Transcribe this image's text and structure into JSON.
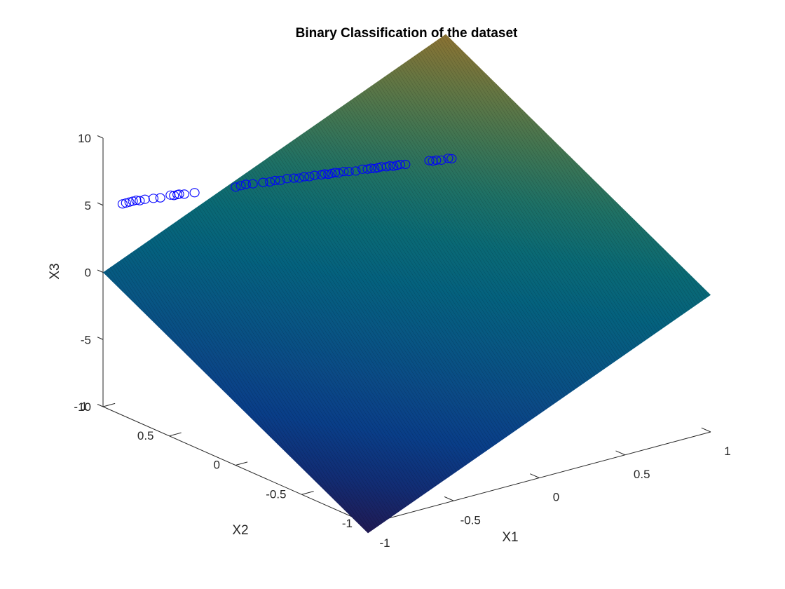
{
  "chart_data": {
    "type": "surface+scatter3d",
    "title": "Binary Classification of the dataset",
    "xlabel": "X1",
    "ylabel": "X2",
    "zlabel": "X3",
    "xlim": [
      -1,
      1
    ],
    "ylim": [
      -1,
      1
    ],
    "zlim": [
      -10,
      10
    ],
    "xticks": [
      "-1",
      "-0.5",
      "0",
      "0.5",
      "1"
    ],
    "yticks": [
      "-1",
      "-0.5",
      "0",
      "0.5",
      "1"
    ],
    "zticks": [
      "-10",
      "-5",
      "0",
      "5",
      "10"
    ],
    "grid": false,
    "colormap": "parula",
    "marker_color": "#0000ff",
    "surface": {
      "kind": "plane",
      "corners": [
        {
          "x1": -1,
          "x2": -1,
          "x3": -10.7
        },
        {
          "x1": 1,
          "x2": -1,
          "x3": 0.2
        },
        {
          "x1": 1,
          "x2": 1,
          "x3": 10.9
        },
        {
          "x1": -1,
          "x2": 1,
          "x3": 0.0
        }
      ]
    },
    "points": [
      {
        "x1": -0.94,
        "x2": 0.93,
        "x3": 5.2
      },
      {
        "x1": -0.92,
        "x2": 0.93,
        "x3": 5.2
      },
      {
        "x1": -0.9,
        "x2": 0.93,
        "x3": 5.2
      },
      {
        "x1": -0.88,
        "x2": 0.93,
        "x3": 5.2
      },
      {
        "x1": -0.86,
        "x2": 0.93,
        "x3": 5.2
      },
      {
        "x1": -0.84,
        "x2": 0.93,
        "x3": 5.1
      },
      {
        "x1": -0.81,
        "x2": 0.93,
        "x3": 5.1
      },
      {
        "x1": -0.76,
        "x2": 0.93,
        "x3": 5.0
      },
      {
        "x1": -0.72,
        "x2": 0.93,
        "x3": 4.9
      },
      {
        "x1": -0.66,
        "x2": 0.93,
        "x3": 4.9
      },
      {
        "x1": -0.64,
        "x2": 0.93,
        "x3": 4.8
      },
      {
        "x1": -0.62,
        "x2": 0.93,
        "x3": 4.8
      },
      {
        "x1": -0.61,
        "x2": 0.93,
        "x3": 4.8
      },
      {
        "x1": -0.58,
        "x2": 0.93,
        "x3": 4.7
      },
      {
        "x1": -0.52,
        "x2": 0.93,
        "x3": 4.6
      },
      {
        "x1": -0.28,
        "x2": 0.93,
        "x3": 4.2
      },
      {
        "x1": -0.25,
        "x2": 0.93,
        "x3": 4.2
      },
      {
        "x1": -0.22,
        "x2": 0.93,
        "x3": 4.2
      },
      {
        "x1": -0.18,
        "x2": 0.93,
        "x3": 4.1
      },
      {
        "x1": -0.12,
        "x2": 0.93,
        "x3": 4.0
      },
      {
        "x1": -0.08,
        "x2": 0.93,
        "x3": 3.9
      },
      {
        "x1": -0.05,
        "x2": 0.93,
        "x3": 3.9
      },
      {
        "x1": -0.02,
        "x2": 0.93,
        "x3": 3.8
      },
      {
        "x1": 0.02,
        "x2": 0.93,
        "x3": 3.8
      },
      {
        "x1": 0.06,
        "x2": 0.93,
        "x3": 3.7
      },
      {
        "x1": 0.09,
        "x2": 0.93,
        "x3": 3.6
      },
      {
        "x1": 0.12,
        "x2": 0.93,
        "x3": 3.6
      },
      {
        "x1": 0.15,
        "x2": 0.93,
        "x3": 3.5
      },
      {
        "x1": 0.18,
        "x2": 0.93,
        "x3": 3.5
      },
      {
        "x1": 0.22,
        "x2": 0.93,
        "x3": 3.4
      },
      {
        "x1": 0.24,
        "x2": 0.93,
        "x3": 3.4
      },
      {
        "x1": 0.26,
        "x2": 0.93,
        "x3": 3.3
      },
      {
        "x1": 0.28,
        "x2": 0.93,
        "x3": 3.3
      },
      {
        "x1": 0.3,
        "x2": 0.93,
        "x3": 3.3
      },
      {
        "x1": 0.32,
        "x2": 0.93,
        "x3": 3.2
      },
      {
        "x1": 0.35,
        "x2": 0.93,
        "x3": 3.2
      },
      {
        "x1": 0.38,
        "x2": 0.93,
        "x3": 3.1
      },
      {
        "x1": 0.42,
        "x2": 0.93,
        "x3": 3.0
      },
      {
        "x1": 0.46,
        "x2": 0.93,
        "x3": 3.0
      },
      {
        "x1": 0.49,
        "x2": 0.93,
        "x3": 2.9
      },
      {
        "x1": 0.51,
        "x2": 0.93,
        "x3": 2.9
      },
      {
        "x1": 0.53,
        "x2": 0.93,
        "x3": 2.8
      },
      {
        "x1": 0.55,
        "x2": 0.93,
        "x3": 2.8
      },
      {
        "x1": 0.57,
        "x2": 0.93,
        "x3": 2.8
      },
      {
        "x1": 0.6,
        "x2": 0.93,
        "x3": 2.7
      },
      {
        "x1": 0.62,
        "x2": 0.93,
        "x3": 2.7
      },
      {
        "x1": 0.64,
        "x2": 0.93,
        "x3": 2.6
      },
      {
        "x1": 0.66,
        "x2": 0.93,
        "x3": 2.6
      },
      {
        "x1": 0.68,
        "x2": 0.93,
        "x3": 2.6
      },
      {
        "x1": 0.71,
        "x2": 0.93,
        "x3": 2.5
      },
      {
        "x1": 0.85,
        "x2": 0.93,
        "x3": 2.3
      },
      {
        "x1": 0.87,
        "x2": 0.93,
        "x3": 2.2
      },
      {
        "x1": 0.89,
        "x2": 0.93,
        "x3": 2.2
      },
      {
        "x1": 0.92,
        "x2": 0.93,
        "x3": 2.1
      },
      {
        "x1": 0.96,
        "x2": 0.93,
        "x3": 2.1
      },
      {
        "x1": 0.98,
        "x2": 0.93,
        "x3": 2.0
      }
    ]
  }
}
